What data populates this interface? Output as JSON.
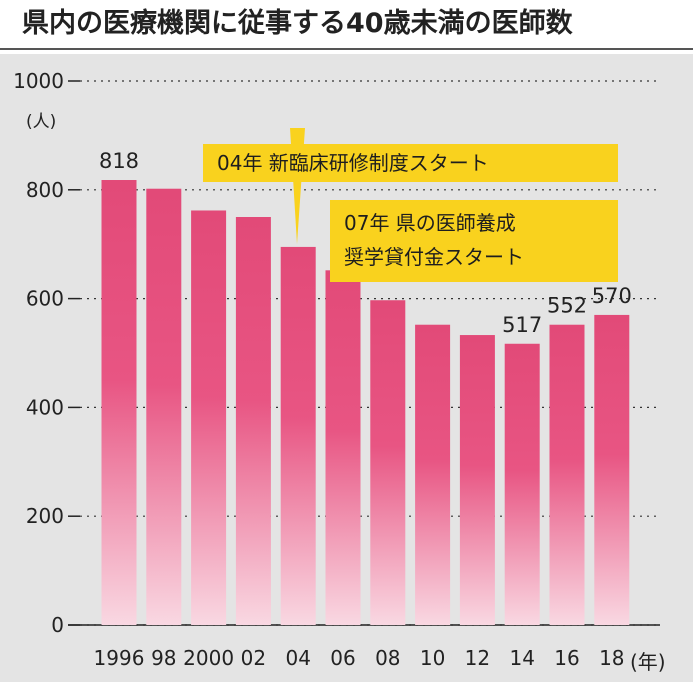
{
  "header": {
    "title": "県内の医療機関に従事する40歳未満の医師数"
  },
  "callouts": {
    "first": "04年 新臨床研修制度スタート",
    "second_line1": "07年 県の医師養成",
    "second_line2": "奨学貸付金スタート"
  },
  "colors": {
    "bar_top": "#e24a78",
    "bar_bottom": "#f9d8e2",
    "panel": "#e4e4e4",
    "callout": "#f9d21e",
    "gridline": "#333333"
  },
  "chart_data": {
    "type": "bar",
    "title": "県内の医療機関に従事する40歳未満の医師数",
    "ylabel": "(人)",
    "xunit": "(年)",
    "ylim": [
      0,
      1000
    ],
    "yticks": [
      0,
      200,
      400,
      600,
      800,
      1000
    ],
    "grid": true,
    "categories": [
      "1996",
      "98",
      "2000",
      "02",
      "04",
      "06",
      "08",
      "10",
      "12",
      "14",
      "16",
      "18"
    ],
    "values": [
      818,
      802,
      762,
      750,
      695,
      652,
      597,
      552,
      533,
      517,
      552,
      570
    ],
    "data_labels": {
      "0": "818",
      "9": "517",
      "10": "552",
      "11": "570"
    }
  }
}
